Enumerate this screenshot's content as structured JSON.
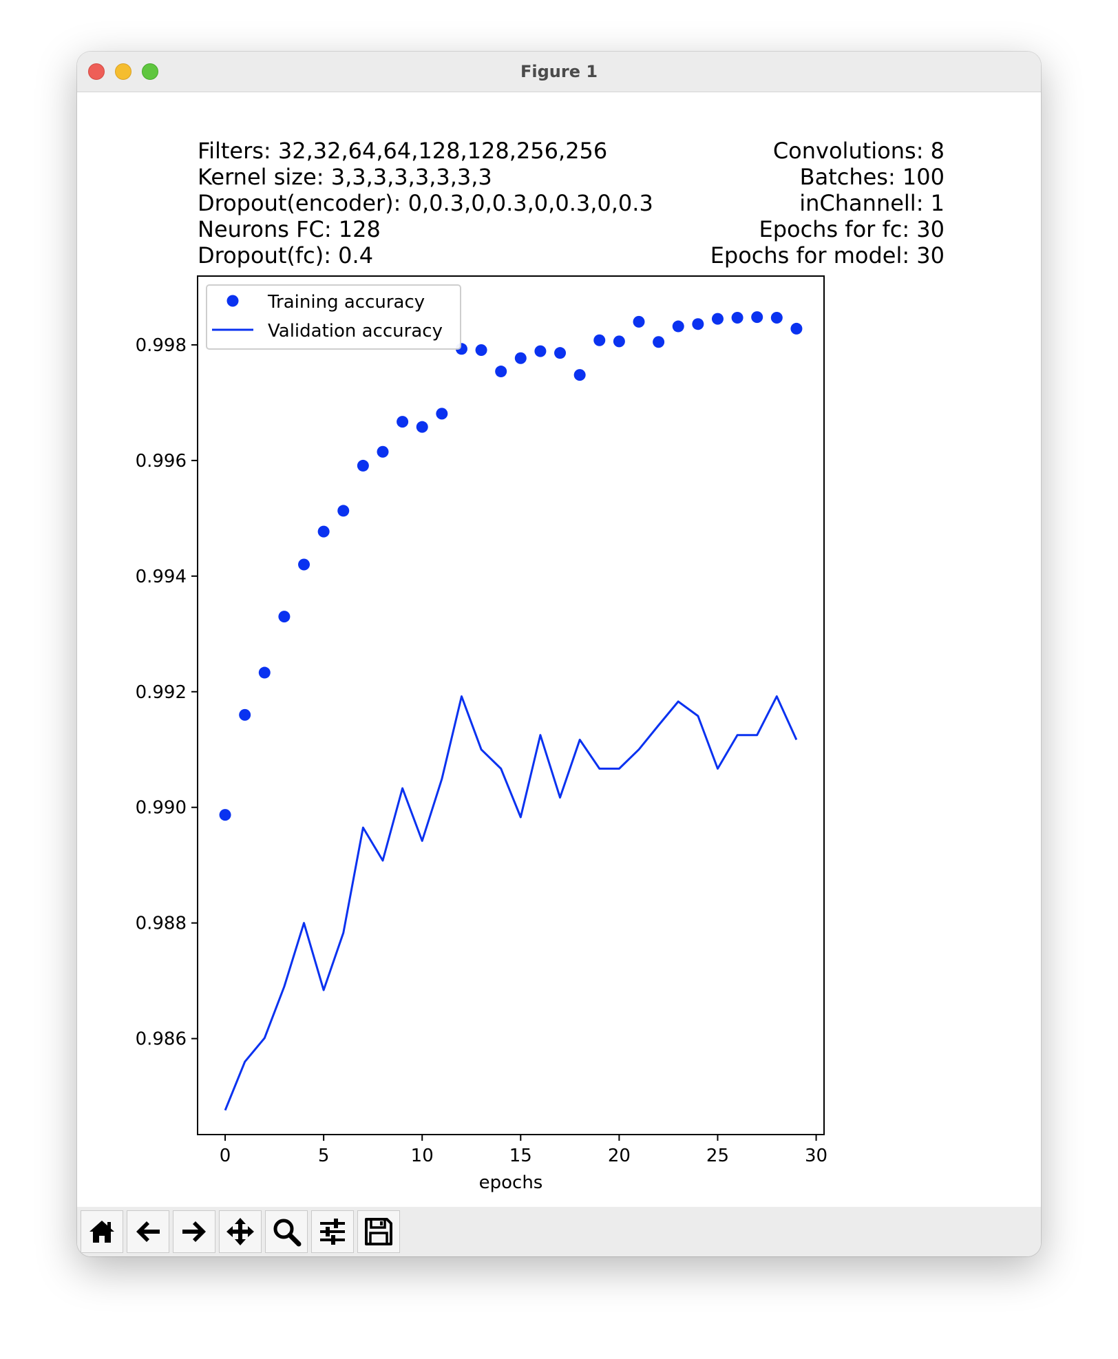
{
  "window": {
    "title": "Figure 1"
  },
  "info": {
    "left": [
      "Filters: 32,32,64,64,128,128,256,256",
      "Kernel size: 3,3,3,3,3,3,3,3",
      "Dropout(encoder): 0,0.3,0,0.3,0,0.3,0,0.3",
      "Neurons FC: 128",
      "Dropout(fc): 0.4"
    ],
    "right": [
      "Convolutions: 8",
      "Batches: 100",
      "inChannell: 1",
      "Epochs for fc: 30",
      "Epochs for model: 30"
    ]
  },
  "toolbar": {
    "buttons": [
      {
        "name": "home-button",
        "icon": "home-icon"
      },
      {
        "name": "back-button",
        "icon": "arrow-left-icon"
      },
      {
        "name": "forward-button",
        "icon": "arrow-right-icon"
      },
      {
        "name": "pan-button",
        "icon": "move-icon"
      },
      {
        "name": "zoom-button",
        "icon": "magnifier-icon"
      },
      {
        "name": "configure-subplots-button",
        "icon": "sliders-icon"
      },
      {
        "name": "save-button",
        "icon": "floppy-disk-icon"
      }
    ]
  },
  "colors": {
    "series": "#0a32f0"
  },
  "chart_data": {
    "type": "line",
    "title": "",
    "xlabel": "epochs",
    "ylabel": "",
    "xlim": [
      -1.4,
      30.4
    ],
    "ylim": [
      0.98434,
      0.99919
    ],
    "xticks": [
      0,
      5,
      10,
      15,
      20,
      25,
      30
    ],
    "yticks": [
      0.986,
      0.988,
      0.99,
      0.992,
      0.994,
      0.996,
      0.998
    ],
    "ytick_labels": [
      "0.986",
      "0.988",
      "0.990",
      "0.992",
      "0.994",
      "0.996",
      "0.998"
    ],
    "grid": false,
    "legend": "top-left",
    "x": [
      0,
      1,
      2,
      3,
      4,
      5,
      6,
      7,
      8,
      9,
      10,
      11,
      12,
      13,
      14,
      15,
      16,
      17,
      18,
      19,
      20,
      21,
      22,
      23,
      24,
      25,
      26,
      27,
      28,
      29
    ],
    "series": [
      {
        "name": "Training accuracy",
        "style": "markers",
        "values": [
          0.98987,
          0.9916,
          0.99233,
          0.9933,
          0.9942,
          0.99477,
          0.99513,
          0.99591,
          0.99615,
          0.99667,
          0.99658,
          0.99681,
          0.99793,
          0.99791,
          0.99754,
          0.99777,
          0.99789,
          0.99786,
          0.99748,
          0.99808,
          0.99806,
          0.9984,
          0.99805,
          0.99832,
          0.99836,
          0.99845,
          0.99847,
          0.99848,
          0.99847,
          0.99828
        ]
      },
      {
        "name": "Validation accuracy",
        "style": "line",
        "values": [
          0.98476,
          0.9856,
          0.98601,
          0.9869,
          0.988,
          0.98684,
          0.98783,
          0.98965,
          0.98908,
          0.99033,
          0.98942,
          0.99049,
          0.99192,
          0.991,
          0.99067,
          0.98983,
          0.99125,
          0.99017,
          0.99117,
          0.99067,
          0.99067,
          0.991,
          0.99142,
          0.99183,
          0.99158,
          0.99067,
          0.99125,
          0.99125,
          0.99192,
          0.99117
        ]
      }
    ]
  }
}
